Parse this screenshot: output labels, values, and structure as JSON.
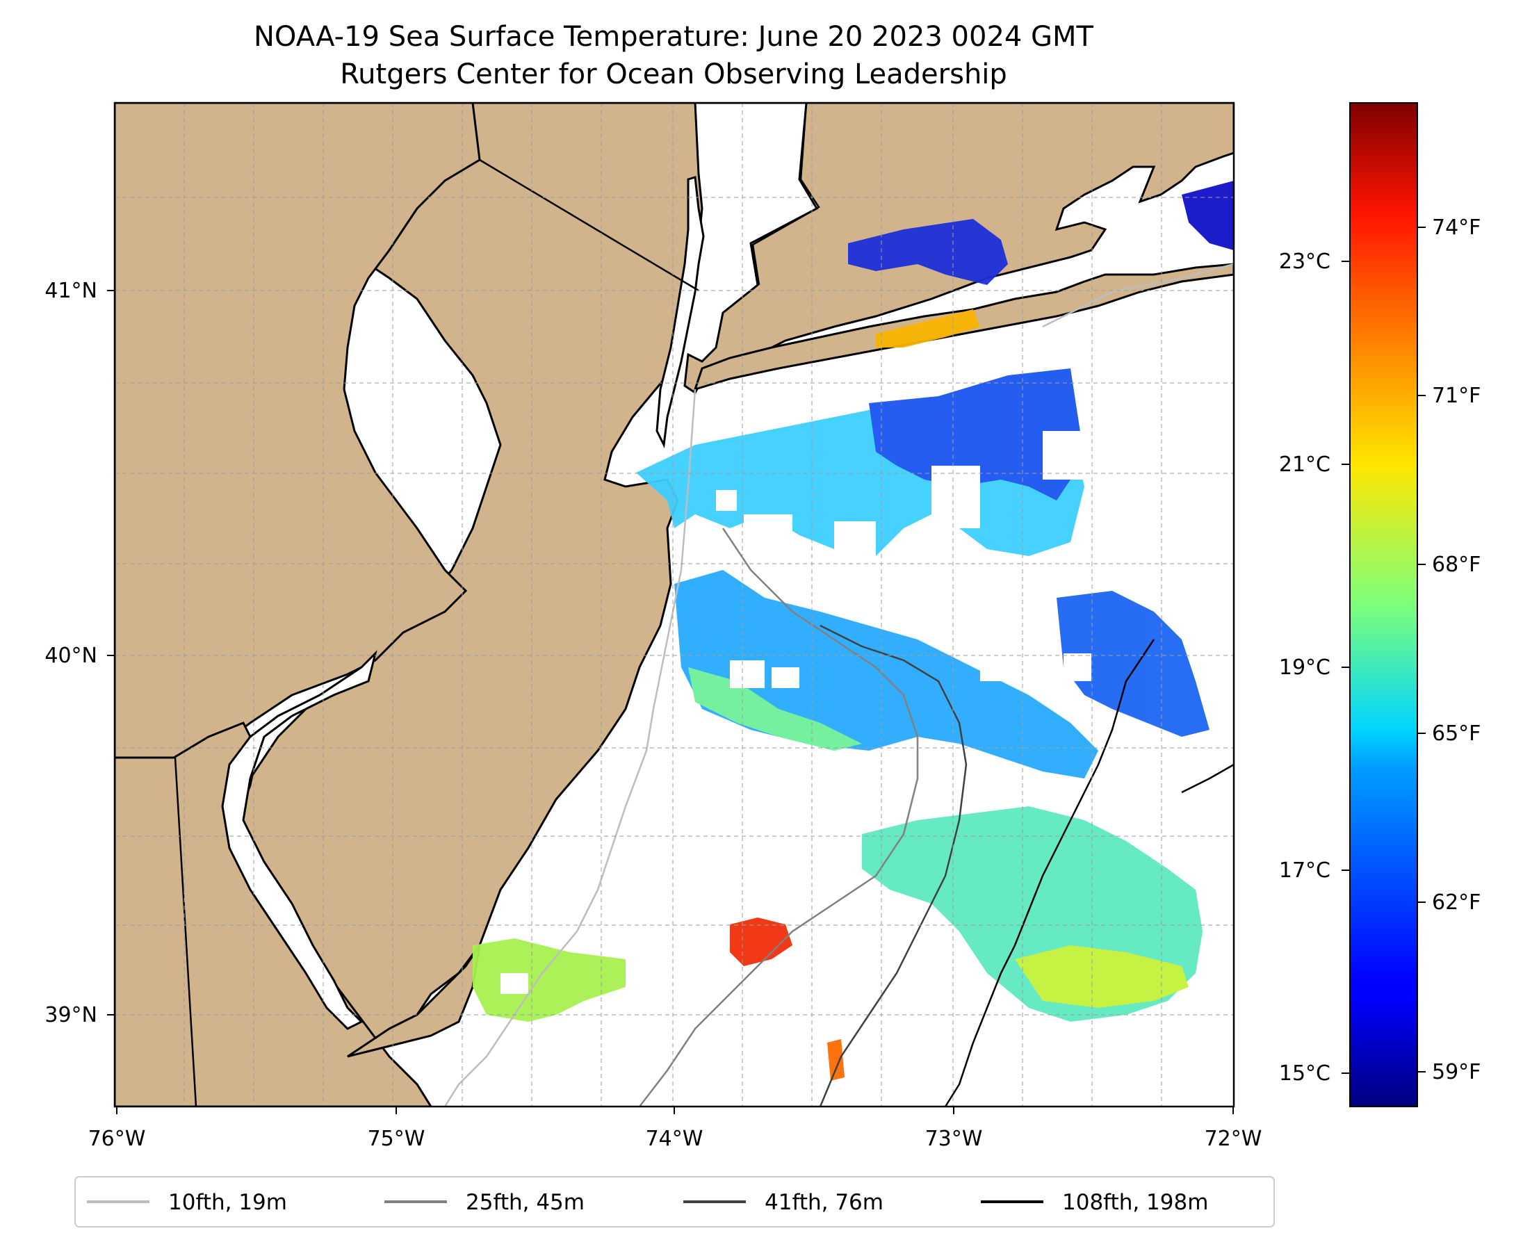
{
  "title": {
    "line1": "NOAA-19 Sea Surface Temperature: June 20 2023 0024 GMT",
    "line2": "Rutgers Center for Ocean Observing Leadership"
  },
  "map": {
    "lon_range": [
      -76,
      -72
    ],
    "lat_range": [
      38.7,
      41.5
    ],
    "x_ticks": [
      "76°W",
      "75°W",
      "74°W",
      "73°W",
      "72°W"
    ],
    "y_ticks": [
      "41°N",
      "40°N",
      "39°N"
    ],
    "land_color": "#d2b48c",
    "water_color": "#ffffff",
    "gridlines": true
  },
  "colorbar": {
    "colormap": "jet",
    "celsius_ticks": [
      "23°C",
      "21°C",
      "19°C",
      "17°C",
      "15°C"
    ],
    "fahrenheit_ticks": [
      "74°F",
      "71°F",
      "68°F",
      "65°F",
      "62°F",
      "59°F"
    ]
  },
  "legend": {
    "items": [
      {
        "label": "10fth, 19m",
        "color": "#bdbdbd"
      },
      {
        "label": "25fth, 45m",
        "color": "#808080"
      },
      {
        "label": "41fth, 76m",
        "color": "#404040"
      },
      {
        "label": "108fth, 198m",
        "color": "#000000"
      }
    ]
  }
}
